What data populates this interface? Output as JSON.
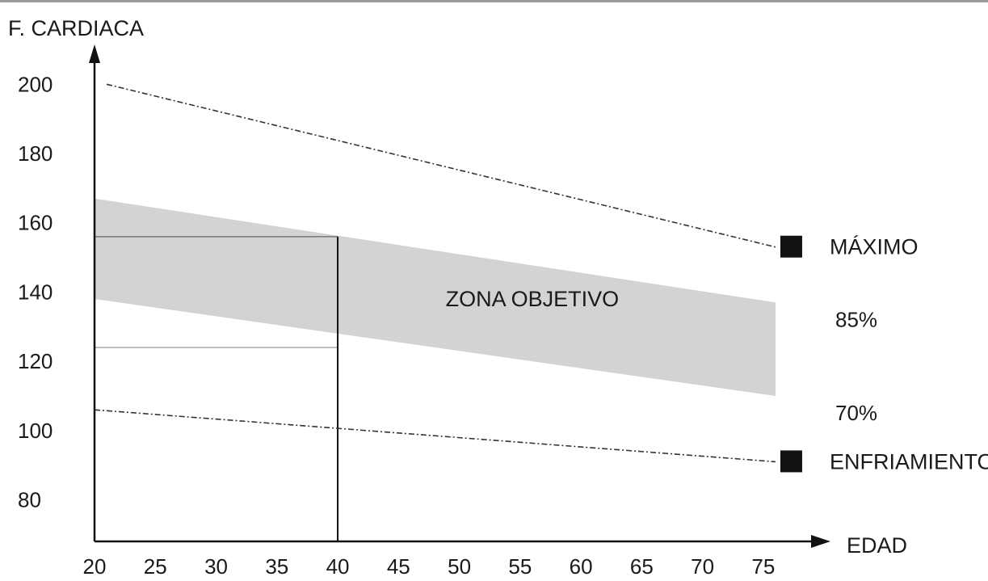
{
  "chart_data": {
    "type": "line",
    "ylabel": "F. CARDIACA",
    "xlabel": "EDAD",
    "x_ticks": [
      "20",
      "25",
      "30",
      "35",
      "40",
      "45",
      "50",
      "55",
      "60",
      "65",
      "70",
      "75"
    ],
    "y_ticks": [
      "80",
      "100",
      "120",
      "140",
      "160",
      "180",
      "200"
    ],
    "xlim": [
      20,
      77
    ],
    "ylim": [
      68,
      208
    ],
    "series": [
      {
        "name": "MÁXIMO",
        "x": [
          21,
          76
        ],
        "y": [
          200,
          153
        ],
        "style": "dash-dot",
        "marker": "square"
      },
      {
        "name": "85%",
        "x": [
          20,
          76
        ],
        "y": [
          167,
          137
        ],
        "style": "zone-upper"
      },
      {
        "name": "70%",
        "x": [
          20,
          76
        ],
        "y": [
          138,
          110
        ],
        "style": "zone-lower"
      },
      {
        "name": "ENFRIAMIENTO",
        "x": [
          20,
          76
        ],
        "y": [
          106,
          91
        ],
        "style": "dash-dot",
        "marker": "square"
      }
    ],
    "zone_label": "ZONA OBJETIVO",
    "example": {
      "x": 40,
      "y_upper": 156,
      "y_lower": 124
    },
    "zone_color": "#d3d3d3",
    "line_color": "#1a1a1a"
  }
}
